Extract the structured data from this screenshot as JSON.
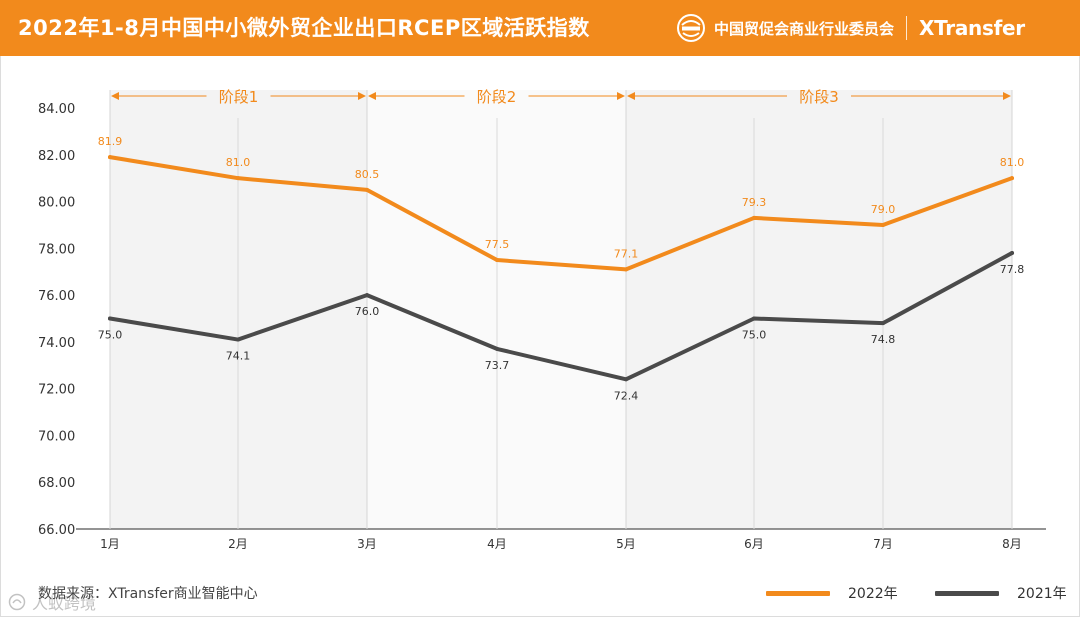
{
  "header": {
    "title": "2022年1-8月中国中小微外贸企业出口RCEP区域活跃指数",
    "org_name": "中国贸促会商业行业委员会",
    "brand": "XTransfer",
    "bg_color": "#f28a1c"
  },
  "footer": {
    "source": "数据来源：XTransfer商业智能中心",
    "watermark": "人蚁跨境"
  },
  "chart_data": {
    "type": "line",
    "title": "2022年1-8月中国中小微外贸企业出口RCEP区域活跃指数",
    "categories": [
      "1月",
      "2月",
      "3月",
      "4月",
      "5月",
      "6月",
      "7月",
      "8月"
    ],
    "series": [
      {
        "name": "2022年",
        "color": "#f28a1c",
        "values": [
          81.9,
          81.0,
          80.5,
          77.5,
          77.1,
          79.3,
          79.0,
          81.0
        ],
        "labels": [
          "81.9",
          "81.0",
          "80.5",
          "77.5",
          "77.1",
          "79.3",
          "79.0",
          "81.0"
        ]
      },
      {
        "name": "2021年",
        "color": "#4a4a4a",
        "values": [
          75.0,
          74.1,
          76.0,
          73.7,
          72.4,
          75.0,
          74.8,
          77.8
        ],
        "labels": [
          "75.0",
          "74.1",
          "76.0",
          "73.7",
          "72.4",
          "75.0",
          "74.8",
          "77.8"
        ]
      }
    ],
    "ylim": [
      66,
      84
    ],
    "yticks": [
      "66.00",
      "68.00",
      "70.00",
      "72.00",
      "74.00",
      "76.00",
      "78.00",
      "80.00",
      "82.00",
      "84.00"
    ],
    "stages": [
      {
        "label": "阶段1",
        "from": 0,
        "to": 2
      },
      {
        "label": "阶段2",
        "from": 2,
        "to": 4
      },
      {
        "label": "阶段3",
        "from": 4,
        "to": 7
      }
    ],
    "legend_position": "bottom-right"
  }
}
